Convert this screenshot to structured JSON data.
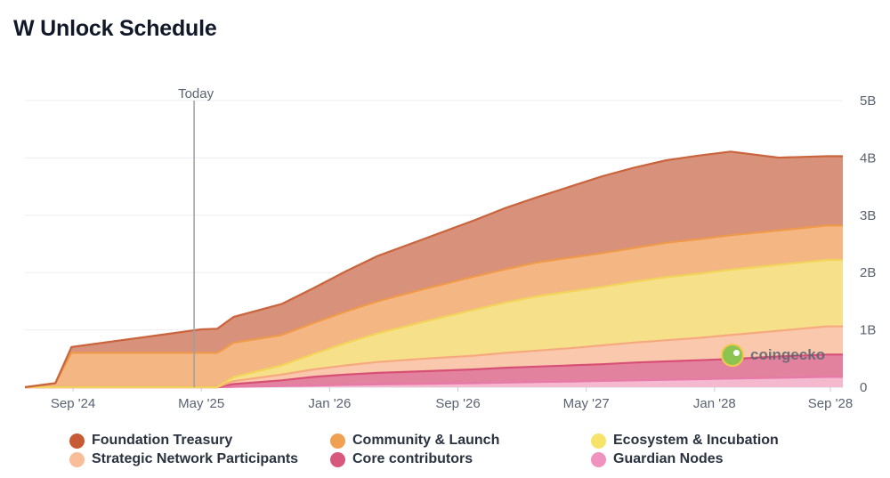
{
  "chart_data": {
    "type": "area",
    "stacked": true,
    "title": "W Unlock Schedule",
    "x_ticks": [
      "Sep '24",
      "May '25",
      "Jan '26",
      "Sep '26",
      "May '27",
      "Jan '28",
      "Sep '28"
    ],
    "y_ticks": [
      "0",
      "1B",
      "2B",
      "3B",
      "4B",
      "5B"
    ],
    "ylim": [
      0,
      5
    ],
    "y_unit": "B",
    "today_label": "Today",
    "today_x": 10.55,
    "x_unit": "months since Jun '24",
    "x": [
      0,
      1.9,
      2.9,
      11,
      12,
      13,
      16,
      18,
      20,
      22,
      25,
      28,
      30,
      32,
      34,
      36,
      38,
      40,
      42,
      44,
      47,
      50,
      51
    ],
    "series": [
      {
        "name": "Guardian Nodes",
        "color": "#f4b9cf",
        "values": [
          0,
          0,
          0,
          0,
          0,
          0.005,
          0.02,
          0.03,
          0.04,
          0.05,
          0.06,
          0.07,
          0.08,
          0.09,
          0.1,
          0.11,
          0.12,
          0.13,
          0.14,
          0.15,
          0.165,
          0.18,
          0.18
        ]
      },
      {
        "name": "Core contributors",
        "color": "#e3829f",
        "values": [
          0,
          0,
          0,
          0,
          0,
          0.05,
          0.1,
          0.15,
          0.18,
          0.2,
          0.22,
          0.24,
          0.26,
          0.27,
          0.28,
          0.29,
          0.31,
          0.32,
          0.33,
          0.34,
          0.37,
          0.39,
          0.39
        ]
      },
      {
        "name": "Strategic Network Participants",
        "color": "#f9c8ad",
        "values": [
          0,
          0,
          0,
          0,
          0,
          0.05,
          0.1,
          0.13,
          0.16,
          0.19,
          0.22,
          0.24,
          0.26,
          0.28,
          0.3,
          0.33,
          0.35,
          0.37,
          0.39,
          0.42,
          0.45,
          0.49,
          0.49
        ]
      },
      {
        "name": "Ecosystem & Incubation",
        "color": "#f6e08a",
        "values": [
          0,
          0,
          0,
          0,
          0,
          0.07,
          0.16,
          0.27,
          0.39,
          0.5,
          0.65,
          0.8,
          0.88,
          0.95,
          0.99,
          1.02,
          1.06,
          1.1,
          1.12,
          1.14,
          1.15,
          1.16,
          1.16
        ]
      },
      {
        "name": "Community & Launch",
        "color": "#f4b783",
        "values": [
          0,
          0.07,
          0.6,
          0.6,
          0.6,
          0.6,
          0.53,
          0.54,
          0.55,
          0.56,
          0.57,
          0.58,
          0.58,
          0.59,
          0.59,
          0.59,
          0.59,
          0.6,
          0.6,
          0.6,
          0.6,
          0.6,
          0.6
        ]
      },
      {
        "name": "Foundation Treasury",
        "color": "#d8917a",
        "values": [
          0,
          0,
          0.1,
          0.41,
          0.42,
          0.45,
          0.54,
          0.61,
          0.7,
          0.79,
          0.88,
          0.98,
          1.07,
          1.14,
          1.24,
          1.34,
          1.4,
          1.44,
          1.46,
          1.46,
          1.27,
          1.21,
          1.21
        ]
      }
    ],
    "legend": [
      {
        "name": "Foundation Treasury",
        "color": "#c75b35"
      },
      {
        "name": "Community & Launch",
        "color": "#f0a052"
      },
      {
        "name": "Ecosystem & Incubation",
        "color": "#f7e36a"
      },
      {
        "name": "Strategic Network Participants",
        "color": "#f9bd9a"
      },
      {
        "name": "Core contributors",
        "color": "#d8577c"
      },
      {
        "name": "Guardian Nodes",
        "color": "#ef92be"
      }
    ],
    "line_colors": {
      "Guardian Nodes": "#e77aa8",
      "Core contributors": "#d84f75",
      "Strategic Network Participants": "#f6a97f",
      "Ecosystem & Incubation": "#f2d45a",
      "Community & Launch": "#ee9a4a",
      "Foundation Treasury": "#c9643c"
    },
    "grid": true,
    "legend_position": "bottom"
  },
  "watermark": {
    "text": "coingecko"
  }
}
